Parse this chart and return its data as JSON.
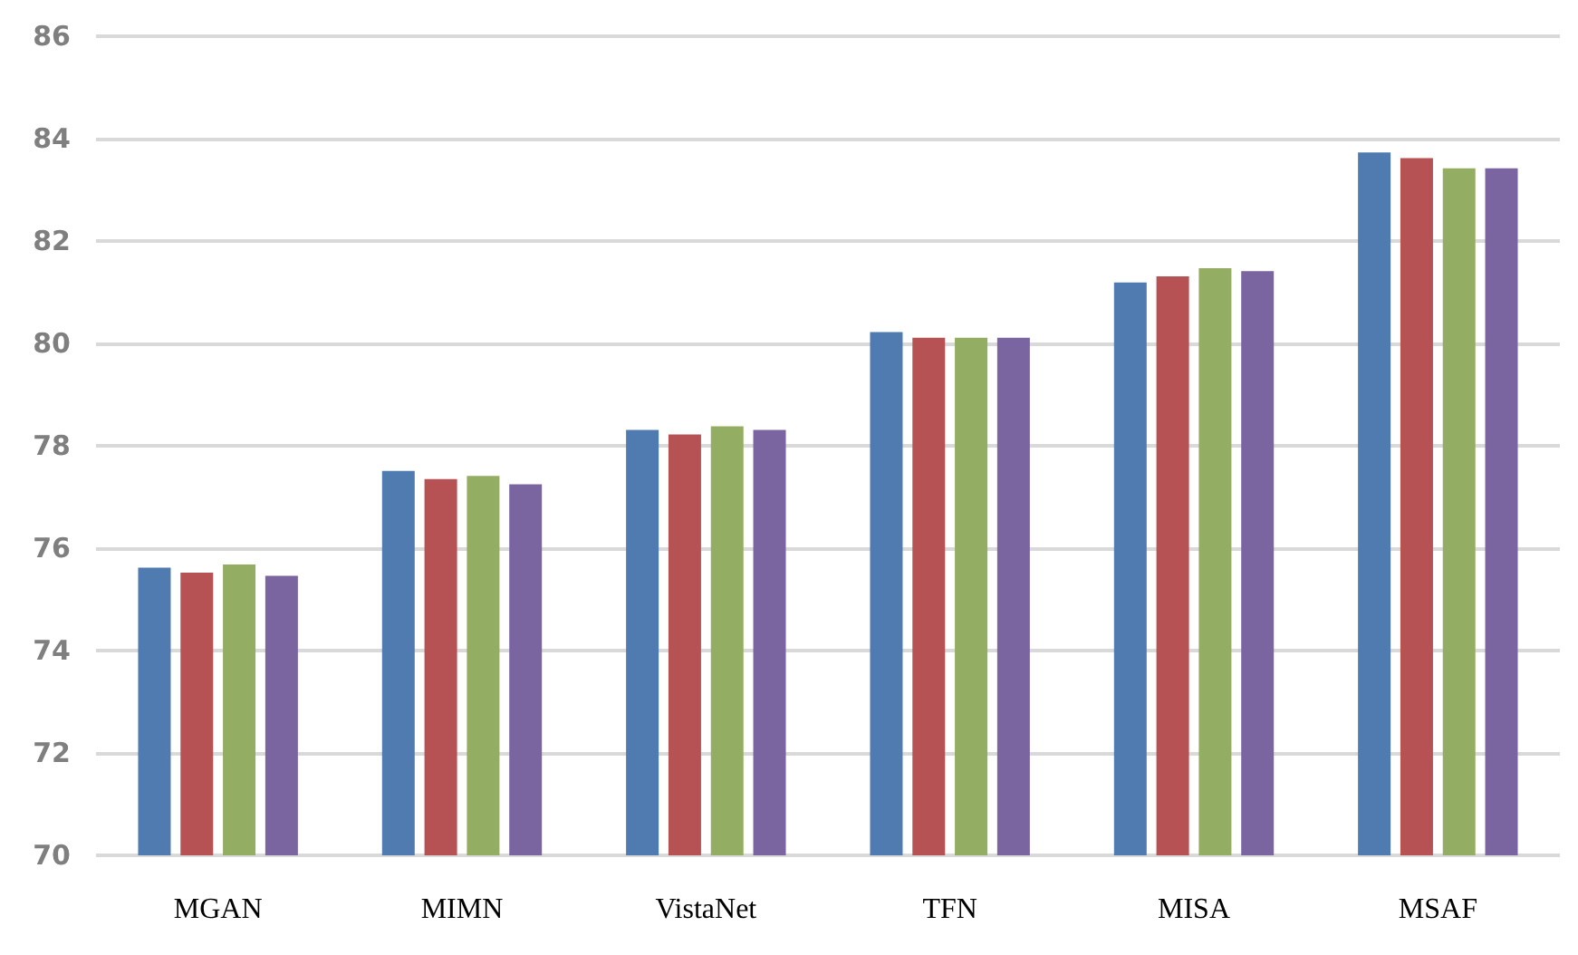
{
  "chart_data": {
    "type": "bar",
    "categories": [
      "MGAN",
      "MIMN",
      "VistaNet",
      "TFN",
      "MISA",
      "MSAF"
    ],
    "series": [
      {
        "color": "#4f7bb0",
        "values": [
          75.62,
          77.51,
          78.31,
          80.22,
          81.19,
          83.73
        ]
      },
      {
        "color": "#b75254",
        "values": [
          75.52,
          77.35,
          78.22,
          80.11,
          81.31,
          83.62
        ]
      },
      {
        "color": "#93ae62",
        "values": [
          75.68,
          77.41,
          78.38,
          80.11,
          81.47,
          83.42
        ]
      },
      {
        "color": "#7a65a0",
        "values": [
          75.46,
          77.25,
          78.31,
          80.11,
          81.41,
          83.42
        ]
      }
    ],
    "ylim": [
      70,
      86
    ],
    "yticks": [
      70,
      72,
      74,
      76,
      78,
      80,
      82,
      84,
      86
    ],
    "grid": "y"
  }
}
